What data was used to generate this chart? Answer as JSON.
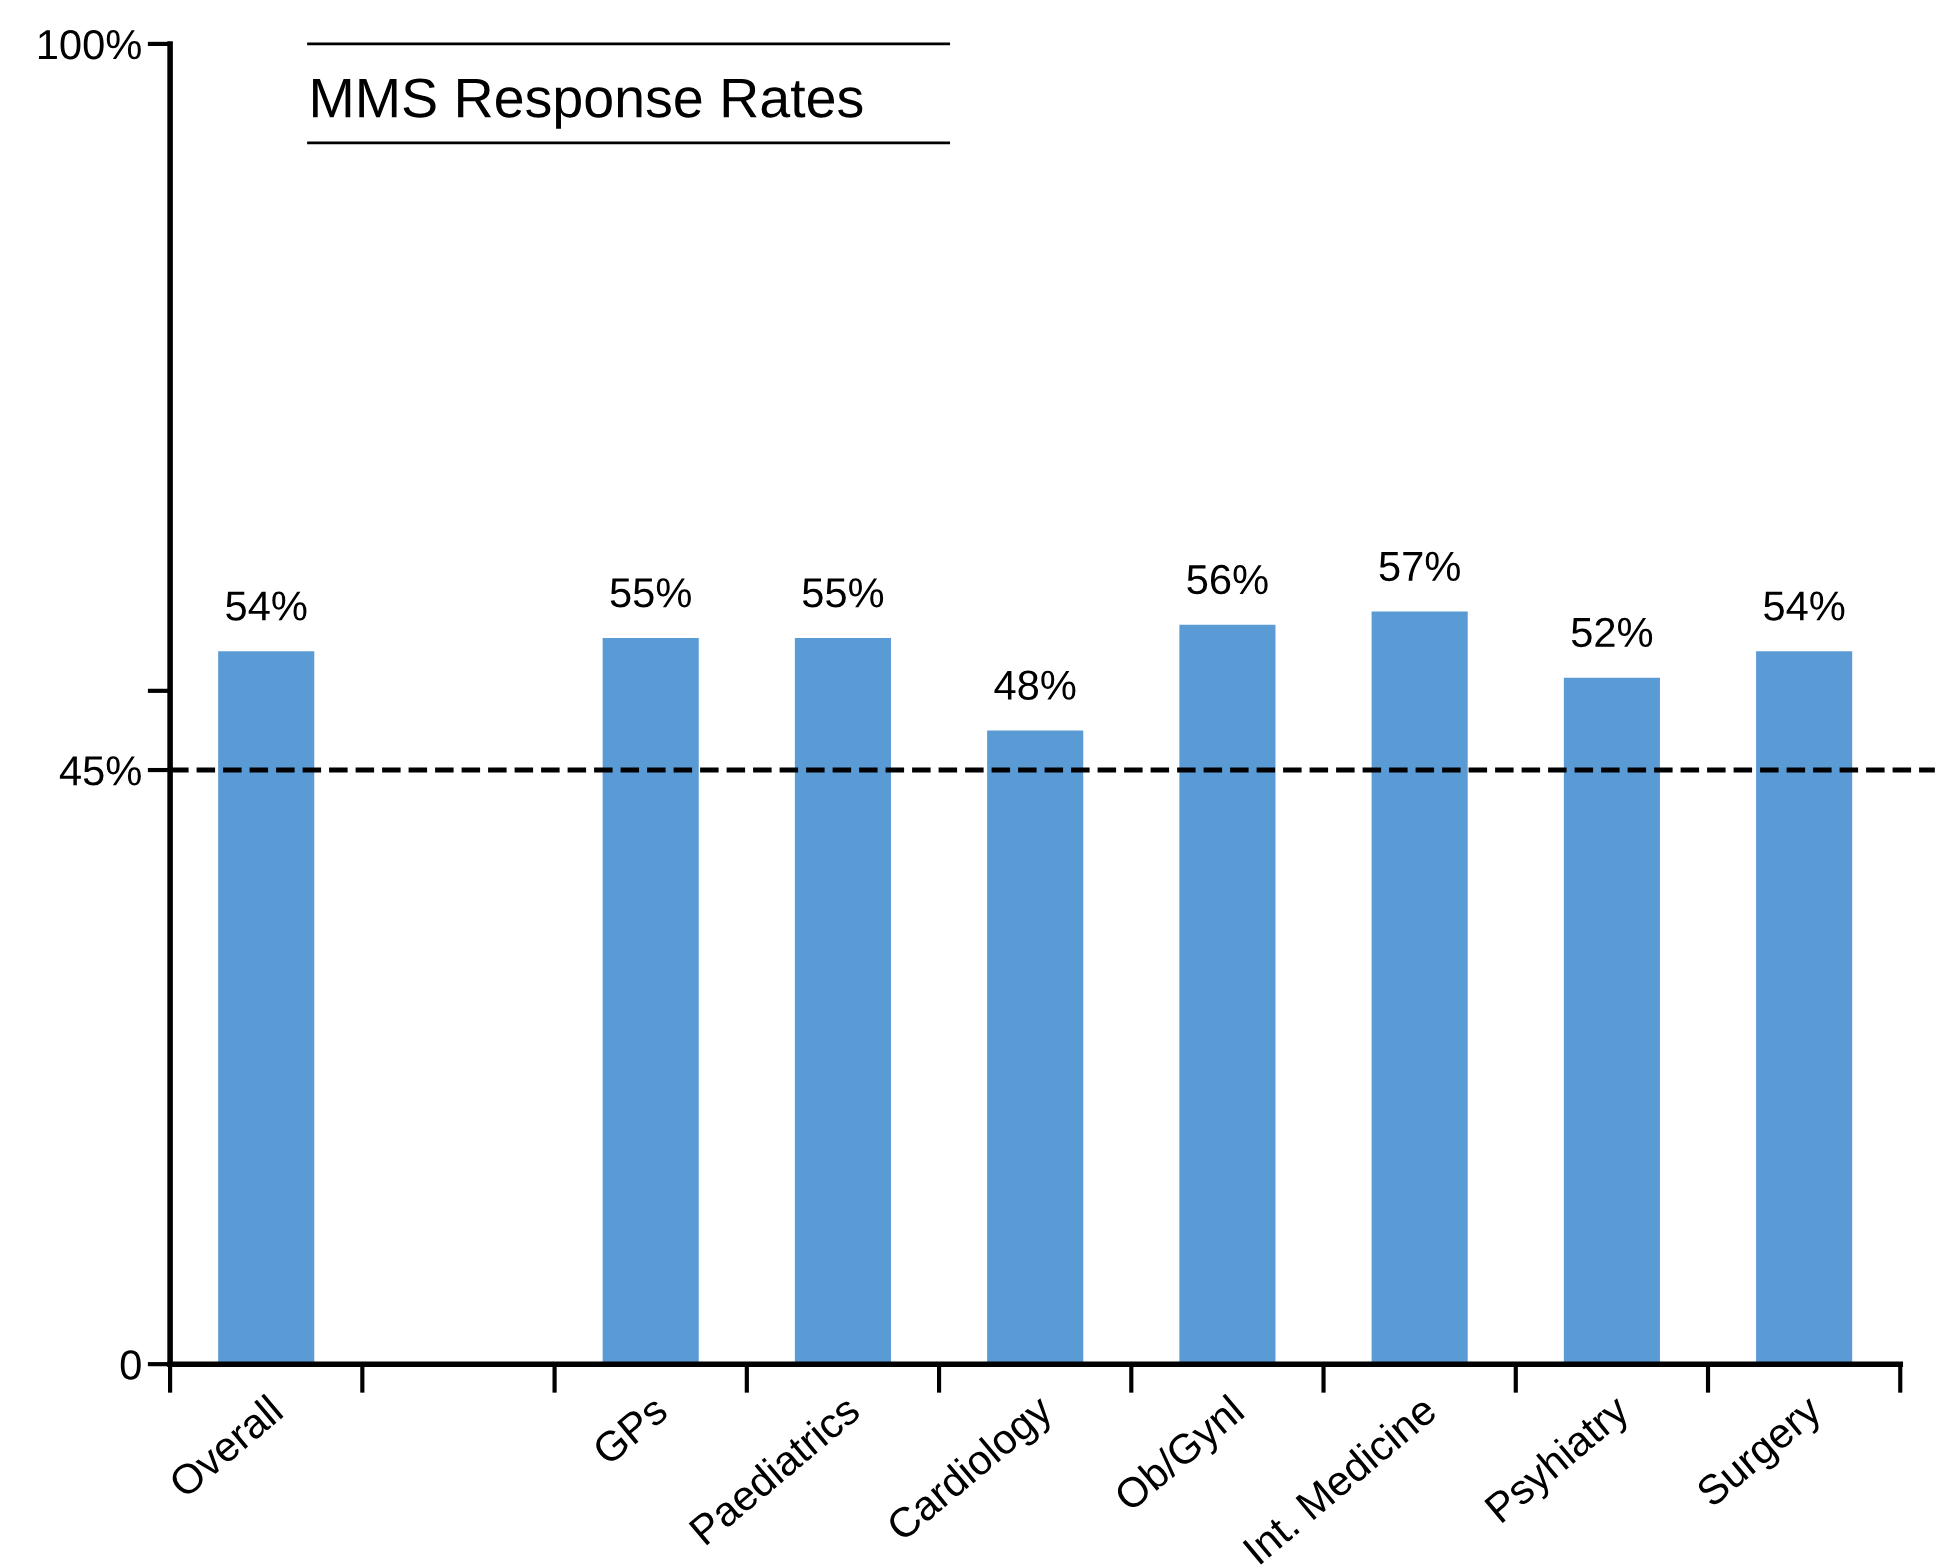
{
  "chart_data": {
    "type": "bar",
    "title": "MMS Response Rates",
    "categories": [
      "Overall",
      null,
      "GPs",
      "Paediatrics",
      "Cardiology",
      "Ob/Gynl",
      "Int. Medicine",
      "Psyhiatry",
      "Surgery"
    ],
    "values": [
      54,
      null,
      55,
      55,
      48,
      56,
      57,
      52,
      54
    ],
    "value_labels": [
      "54%",
      null,
      "55%",
      "55%",
      "48%",
      "56%",
      "57%",
      "52%",
      "54%"
    ],
    "color": "#5b9bd5",
    "ylim": [
      0,
      100
    ],
    "yticks": [
      0,
      {
        "value": 45,
        "label": "45%"
      },
      {
        "value": 51,
        "label": null
      },
      {
        "value": 100,
        "label": "100%"
      }
    ],
    "ref_lines": [
      {
        "axis": "y",
        "value": 45,
        "label": null,
        "color": "#000000",
        "line_style": "dashed"
      }
    ],
    "grid": false,
    "legend": false
  }
}
